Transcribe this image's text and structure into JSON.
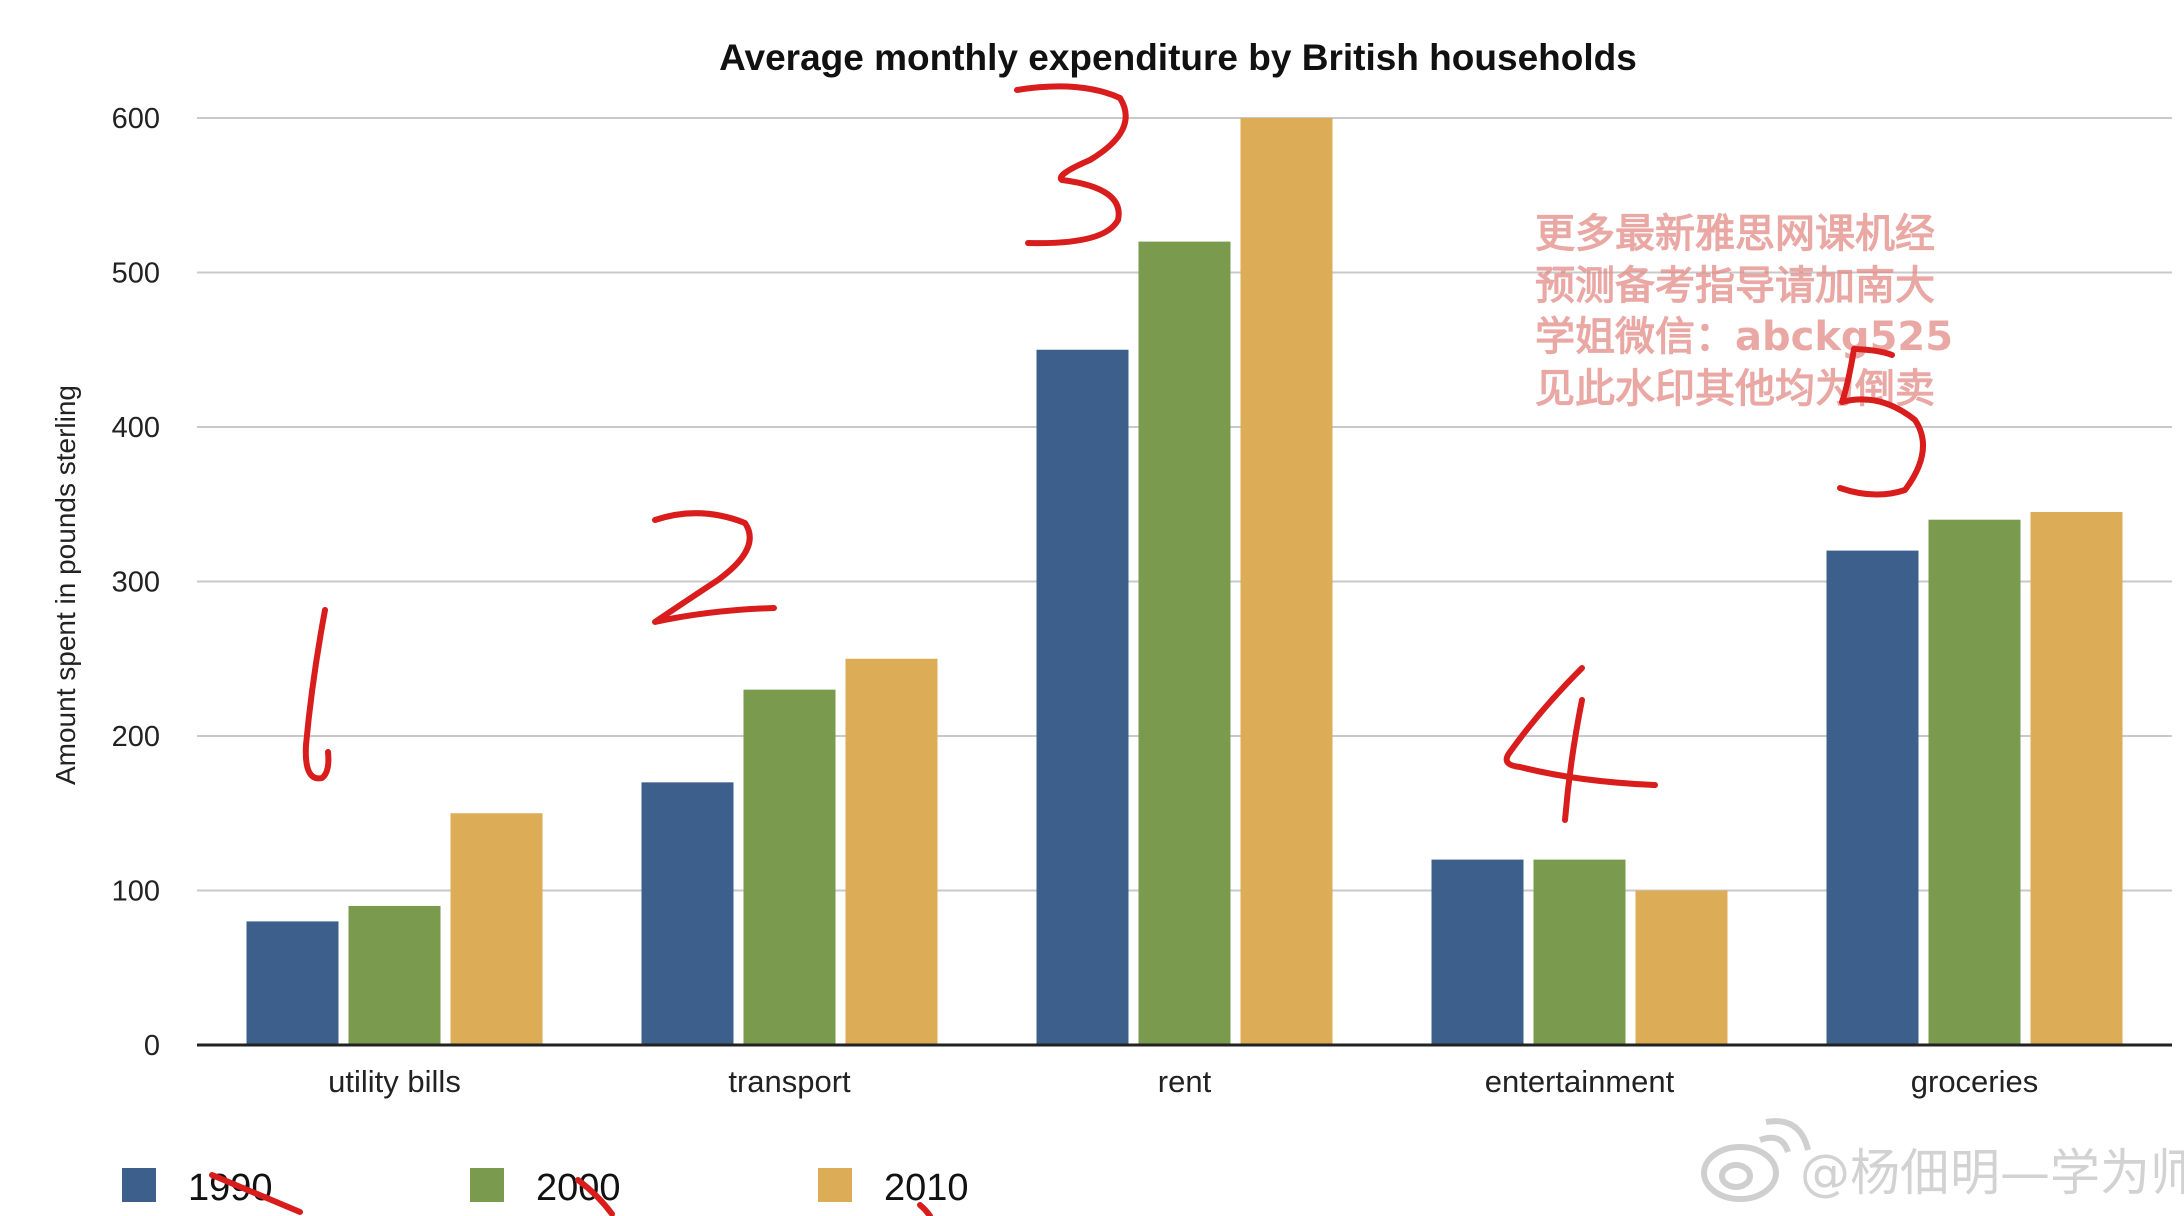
{
  "chart_data": {
    "type": "bar",
    "title": "Average monthly expenditure by British households",
    "ylabel": "Amount spent in pounds sterling",
    "xlabel": "",
    "categories": [
      "utility bills",
      "transport",
      "rent",
      "entertainment",
      "groceries"
    ],
    "series": [
      {
        "name": "1990",
        "color": "#3d5f8c",
        "values": [
          80,
          170,
          450,
          120,
          320
        ]
      },
      {
        "name": "2000",
        "color": "#7a9a4d",
        "values": [
          90,
          230,
          520,
          120,
          340
        ]
      },
      {
        "name": "2010",
        "color": "#dcac56",
        "values": [
          150,
          250,
          600,
          100,
          345
        ]
      }
    ],
    "ylim": [
      0,
      600
    ],
    "yticks": [
      "0",
      "100",
      "200",
      "300",
      "400",
      "500",
      "600"
    ],
    "grid": true,
    "legend_position": "bottom-left"
  },
  "watermark": {
    "lines": [
      "更多最新雅思网课机经",
      "预测备考指导请加南大",
      "学姐微信：abckg525",
      "见此水印其他均为倒卖"
    ]
  },
  "social_watermark": {
    "text": "@杨佃明—学为师"
  },
  "annotations": {
    "numbers": [
      "1",
      "2",
      "3",
      "4",
      "5"
    ],
    "color": "#d91c1c"
  }
}
